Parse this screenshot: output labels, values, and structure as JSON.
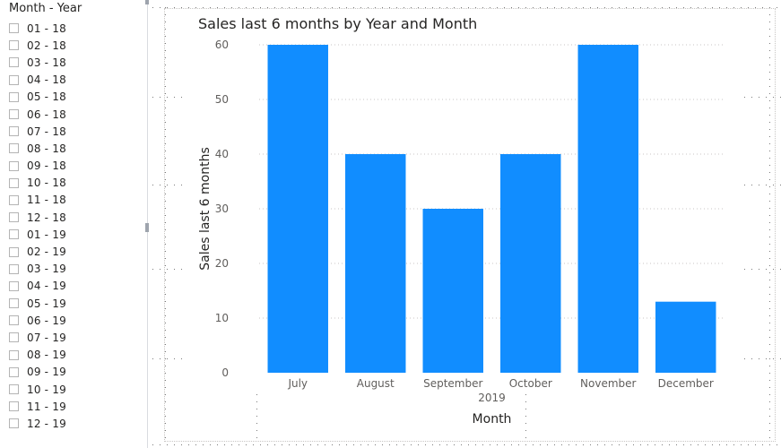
{
  "slicer": {
    "title": "Month - Year",
    "items": [
      "01 - 18",
      "02 - 18",
      "03 - 18",
      "04 - 18",
      "05 - 18",
      "06 - 18",
      "07 - 18",
      "08 - 18",
      "09 - 18",
      "10 - 18",
      "11 - 18",
      "12 - 18",
      "01 - 19",
      "02 - 19",
      "03 - 19",
      "04 - 19",
      "05 - 19",
      "06 - 19",
      "07 - 19",
      "08 - 19",
      "09 - 19",
      "10 - 19",
      "11 - 19",
      "12 - 19"
    ]
  },
  "chart_data": {
    "type": "bar",
    "title": "Sales last 6 months by Year and Month",
    "xlabel": "Month",
    "x_group_label": "2019",
    "ylabel": "Sales last 6 months",
    "categories": [
      "July",
      "August",
      "September",
      "October",
      "November",
      "December"
    ],
    "values": [
      60,
      40,
      30,
      40,
      60,
      13
    ],
    "ylim": [
      0,
      60
    ],
    "yticks": [
      0,
      10,
      20,
      30,
      40,
      50,
      60
    ],
    "grid": true,
    "bar_color": "#118DFF"
  }
}
